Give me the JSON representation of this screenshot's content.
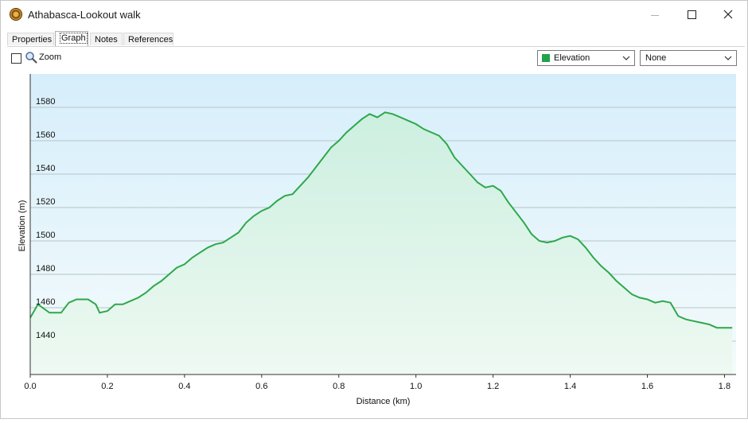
{
  "window": {
    "title": "Athabasca-Lookout walk"
  },
  "tabs": [
    {
      "label": "Properties"
    },
    {
      "label": "Graph"
    },
    {
      "label": "Notes"
    },
    {
      "label": "References"
    }
  ],
  "toolbar": {
    "zoom_label": "Zoom",
    "zoom_checked": false,
    "series_select": {
      "value": "Elevation",
      "swatch_color": "#22a34a"
    },
    "second_select": {
      "value": "None"
    }
  },
  "chart_data": {
    "type": "area",
    "title": "",
    "xlabel": "Distance  (km)",
    "ylabel": "Elevation (m)",
    "xlim": [
      0,
      1.83
    ],
    "ylim": [
      1420,
      1600
    ],
    "x_ticks": [
      "0.0",
      "0.2",
      "0.4",
      "0.6",
      "0.8",
      "1.0",
      "1.2",
      "1.4",
      "1.6",
      "1.8"
    ],
    "y_ticks": [
      "1440",
      "1460",
      "1480",
      "1500",
      "1520",
      "1540",
      "1560",
      "1580"
    ],
    "grid": true,
    "line_color": "#2ea84a",
    "series": [
      {
        "name": "Elevation",
        "x": [
          0.0,
          0.02,
          0.05,
          0.08,
          0.1,
          0.12,
          0.15,
          0.17,
          0.18,
          0.2,
          0.22,
          0.24,
          0.26,
          0.28,
          0.3,
          0.32,
          0.34,
          0.36,
          0.38,
          0.4,
          0.42,
          0.44,
          0.46,
          0.48,
          0.5,
          0.52,
          0.54,
          0.56,
          0.58,
          0.6,
          0.62,
          0.64,
          0.66,
          0.68,
          0.7,
          0.72,
          0.74,
          0.76,
          0.78,
          0.8,
          0.82,
          0.84,
          0.86,
          0.88,
          0.9,
          0.92,
          0.94,
          0.96,
          0.98,
          1.0,
          1.02,
          1.04,
          1.06,
          1.08,
          1.1,
          1.12,
          1.14,
          1.16,
          1.18,
          1.2,
          1.22,
          1.24,
          1.26,
          1.28,
          1.3,
          1.32,
          1.34,
          1.36,
          1.38,
          1.4,
          1.42,
          1.44,
          1.46,
          1.48,
          1.5,
          1.52,
          1.54,
          1.56,
          1.58,
          1.6,
          1.62,
          1.64,
          1.66,
          1.68,
          1.7,
          1.72,
          1.74,
          1.76,
          1.78,
          1.8,
          1.82
        ],
        "values": [
          1454,
          1462,
          1457,
          1457,
          1463,
          1465,
          1465,
          1462,
          1457,
          1458,
          1462,
          1462,
          1464,
          1466,
          1469,
          1473,
          1476,
          1480,
          1484,
          1486,
          1490,
          1493,
          1496,
          1498,
          1499,
          1502,
          1505,
          1511,
          1515,
          1518,
          1520,
          1524,
          1527,
          1528,
          1533,
          1538,
          1544,
          1550,
          1556,
          1560,
          1565,
          1569,
          1573,
          1576,
          1574,
          1577,
          1576,
          1574,
          1572,
          1570,
          1567,
          1565,
          1563,
          1558,
          1550,
          1545,
          1540,
          1535,
          1532,
          1533,
          1530,
          1523,
          1517,
          1511,
          1504,
          1500,
          1499,
          1500,
          1502,
          1503,
          1501,
          1496,
          1490,
          1485,
          1481,
          1476,
          1472,
          1468,
          1466,
          1465,
          1463,
          1464,
          1463,
          1455,
          1453,
          1452,
          1451,
          1450,
          1448,
          1448,
          1448
        ]
      }
    ]
  }
}
